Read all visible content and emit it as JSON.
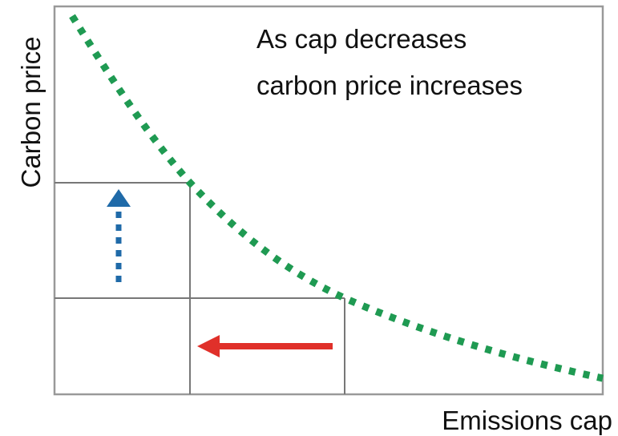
{
  "annotation": [
    "As cap decreases",
    "carbon price increases"
  ],
  "y_axis_label": "Carbon price",
  "x_axis_label": "Emissions cap"
}
